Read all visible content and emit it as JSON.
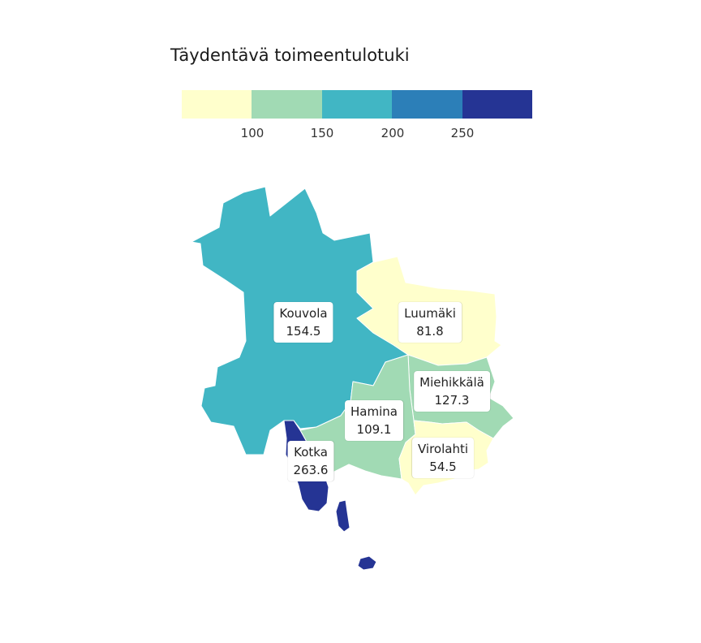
{
  "legend": {
    "title": "Täydentävä toimeentulotuki",
    "colors": [
      "#ffffcc",
      "#a1dab4",
      "#41b6c4",
      "#2c7fb8",
      "#253494"
    ],
    "ticks": [
      "100",
      "150",
      "200",
      "250"
    ]
  },
  "municipalities": [
    {
      "name": "Kouvola",
      "value": "154.5",
      "color": "#41b6c4"
    },
    {
      "name": "Luumäki",
      "value": "81.8",
      "color": "#ffffcc"
    },
    {
      "name": "Miehikkälä",
      "value": "127.3",
      "color": "#a1dab4"
    },
    {
      "name": "Hamina",
      "value": "109.1",
      "color": "#a1dab4"
    },
    {
      "name": "Virolahti",
      "value": "54.5",
      "color": "#ffffcc"
    },
    {
      "name": "Kotka",
      "value": "263.6",
      "color": "#253494"
    }
  ]
}
